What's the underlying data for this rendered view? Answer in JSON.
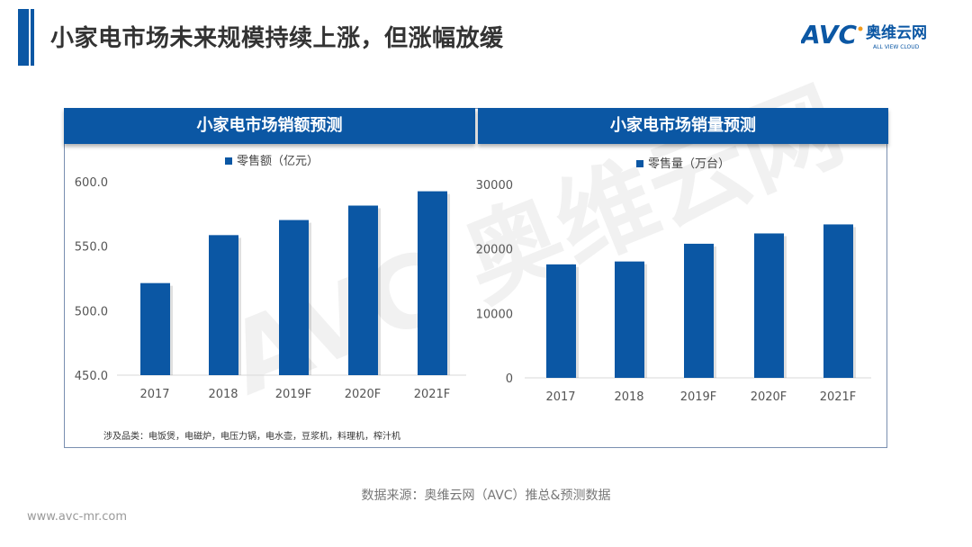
{
  "header": {
    "title": "小家电市场未来规模持续上涨，但涨幅放缓",
    "logo_text": "AVC",
    "logo_cn": "奥维云网",
    "logo_en": "ALL VIEW CLOUD"
  },
  "colors": {
    "accent": "#0b57a4"
  },
  "watermark": "AVC 奥维云网",
  "chart_data": [
    {
      "type": "bar",
      "title": "小家电市场销额预测",
      "categories": [
        "2017",
        "2018",
        "2019F",
        "2020F",
        "2021F"
      ],
      "series": [
        {
          "name": "零售额（亿元）",
          "values": [
            521.4,
            558.6,
            570.3,
            581.5,
            592.6
          ]
        }
      ],
      "ylim": [
        450,
        600
      ],
      "yticks": [
        "450.0",
        "500.0",
        "550.0",
        "600.0"
      ],
      "legend": "top",
      "grid": false
    },
    {
      "type": "bar",
      "title": "小家电市场销量预测",
      "categories": [
        "2017",
        "2018",
        "2019F",
        "2020F",
        "2021F"
      ],
      "series": [
        {
          "name": "零售量（万台）",
          "values": [
            17600,
            18050,
            20800,
            22400,
            23800
          ]
        }
      ],
      "ylim": [
        0,
        30000
      ],
      "yticks": [
        "0",
        "10000",
        "20000",
        "30000"
      ],
      "legend": "top",
      "grid": false
    }
  ],
  "note": "涉及品类：电饭煲，电磁炉，电压力锅，电水壶，豆浆机，料理机，榨汁机",
  "source": "数据来源：奥维云网（AVC）推总&预测数据",
  "url": "www.avc-mr.com"
}
